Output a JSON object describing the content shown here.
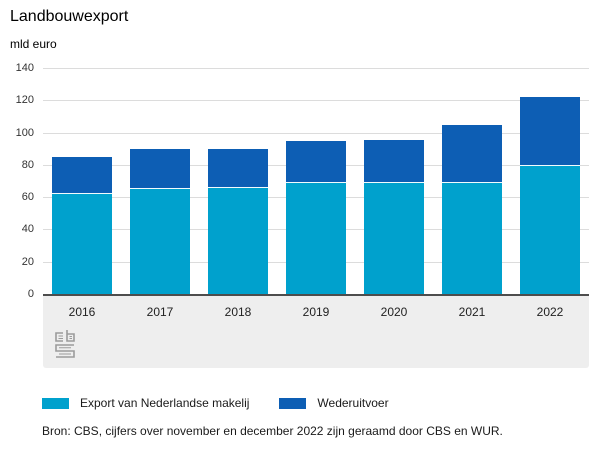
{
  "title": "Landbouwexport",
  "unit_label": "mld euro",
  "chart_data": {
    "type": "bar",
    "stacked": true,
    "title": "Landbouwexport",
    "xlabel": "",
    "ylabel": "mld euro",
    "categories": [
      "2016",
      "2017",
      "2018",
      "2019",
      "2020",
      "2021",
      "2022"
    ],
    "series": [
      {
        "name": "Export van Nederlandse makelij",
        "color": "#00a1cd",
        "values": [
          62,
          65,
          65.5,
          69,
          68.5,
          69,
          79.5
        ]
      },
      {
        "name": "Wederuitvoer",
        "color": "#0d5eb4",
        "values": [
          23,
          25,
          24.5,
          25.5,
          27,
          35.5,
          42.5
        ]
      }
    ],
    "totals": [
      85,
      90,
      90,
      94.5,
      95.5,
      104.5,
      122
    ],
    "ylim": [
      0,
      140
    ],
    "yticks": [
      0,
      20,
      40,
      60,
      80,
      100,
      120,
      140
    ],
    "grid": true,
    "legend_position": "bottom"
  },
  "legend": {
    "items": [
      {
        "label": "Export van Nederlandse makelij",
        "color": "#00a1cd"
      },
      {
        "label": "Wederuitvoer",
        "color": "#0d5eb4"
      }
    ]
  },
  "source_note": "Bron: CBS, cijfers over november en december 2022 zijn geraamd door CBS en WUR.",
  "branding": {
    "logo": "CBS"
  },
  "colors": {
    "series_light": "#00a1cd",
    "series_dark": "#0d5eb4",
    "gridline": "#dcdcdc",
    "axis_line": "#4d4d4d",
    "xaxis_band": "#eeeeee",
    "logo_gray": "#9b9b9b"
  }
}
